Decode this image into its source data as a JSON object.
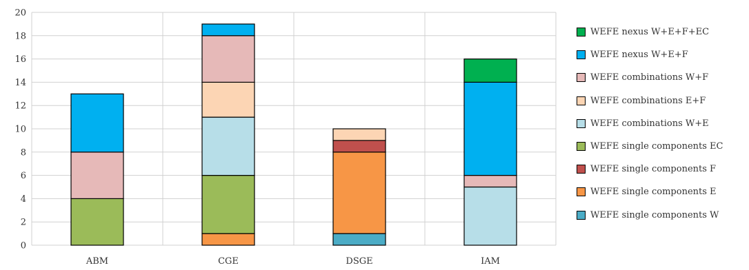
{
  "chart_data": {
    "type": "bar",
    "stacked": true,
    "title": "",
    "xlabel": "",
    "ylabel": "",
    "categories": [
      "ABM",
      "CGE",
      "DSGE",
      "IAM"
    ],
    "ylim": [
      0,
      20
    ],
    "yticks": [
      0,
      2,
      4,
      6,
      8,
      10,
      12,
      14,
      16,
      18,
      20
    ],
    "grid": true,
    "legend_position": "right",
    "series": [
      {
        "name": "WEFE single components W",
        "color": "#4BACC6",
        "values": [
          0,
          0,
          1,
          0
        ]
      },
      {
        "name": "WEFE single components E",
        "color": "#F79646",
        "values": [
          0,
          1,
          7,
          0
        ]
      },
      {
        "name": "WEFE single components F",
        "color": "#C0504D",
        "values": [
          0,
          0,
          1,
          0
        ]
      },
      {
        "name": "WEFE single components EC",
        "color": "#9BBB59",
        "values": [
          4,
          5,
          0,
          0
        ]
      },
      {
        "name": "WEFE combinations W+E",
        "color": "#B7DEE8",
        "values": [
          0,
          5,
          0,
          5
        ]
      },
      {
        "name": "WEFE combinations E+F",
        "color": "#FCD5B4",
        "values": [
          0,
          3,
          1,
          0
        ]
      },
      {
        "name": "WEFE combinations W+F",
        "color": "#E6B9B8",
        "values": [
          4,
          4,
          0,
          1
        ]
      },
      {
        "name": "WEFE nexus W+E+F",
        "color": "#00B0F0",
        "values": [
          5,
          1,
          0,
          8
        ]
      },
      {
        "name": "WEFE nexus W+E+F+EC",
        "color": "#00B050",
        "values": [
          0,
          0,
          0,
          2
        ]
      }
    ]
  }
}
